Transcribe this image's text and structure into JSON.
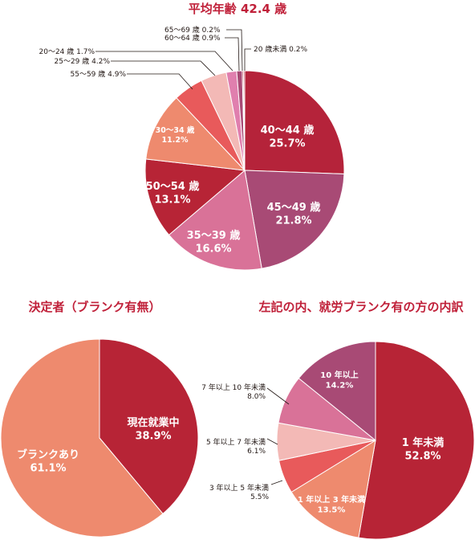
{
  "colors": {
    "title": "#c0213a",
    "crimson": "#b5233a",
    "wine": "#a84a75",
    "rose": "#d97298",
    "darkred": "#b72436",
    "salmon": "#ee8a6e",
    "red": "#e85a5b",
    "pale_pink": "#f3b9b6",
    "pink": "#e07fae",
    "dark": "#231815"
  },
  "chart_data": [
    {
      "type": "pie",
      "title": "平均年齢 42.4 歳",
      "slices": [
        {
          "label": "40～44 歳",
          "value": 25.7,
          "value_label": "25.7%",
          "color": "#b5233a"
        },
        {
          "label": "45～49 歳",
          "value": 21.8,
          "value_label": "21.8%",
          "color": "#a84a75"
        },
        {
          "label": "35～39 歳",
          "value": 16.6,
          "value_label": "16.6%",
          "color": "#d97298"
        },
        {
          "label": "50～54 歳",
          "value": 13.1,
          "value_label": "13.1%",
          "color": "#b72436"
        },
        {
          "label": "30～34 歳",
          "value": 11.2,
          "value_label": "11.2%",
          "color": "#ee8a6e"
        },
        {
          "label": "55～59 歳",
          "value": 4.9,
          "value_label": "4.9%",
          "color": "#e85a5b"
        },
        {
          "label": "25～29 歳",
          "value": 4.2,
          "value_label": "4.2%",
          "color": "#f3b9b6"
        },
        {
          "label": "20～24 歳",
          "value": 1.7,
          "value_label": "1.7%",
          "color": "#e07fae"
        },
        {
          "label": "60～64 歳",
          "value": 0.9,
          "value_label": "0.9%",
          "color": "#a84a75"
        },
        {
          "label": "65～69 歳",
          "value": 0.2,
          "value_label": "0.2%",
          "color": "#b5233a"
        },
        {
          "label": "20 歳未満",
          "value": 0.2,
          "value_label": "0.2%",
          "color": "#b72436"
        }
      ]
    },
    {
      "type": "pie",
      "title": "決定者（ブランク有無）",
      "slices": [
        {
          "label": "現在就業中",
          "value": 38.9,
          "value_label": "38.9%",
          "color": "#b72436"
        },
        {
          "label": "ブランクあり",
          "value": 61.1,
          "value_label": "61.1%",
          "color": "#ee8a6e"
        }
      ]
    },
    {
      "type": "pie",
      "title": "左記の内、就労ブランク有の方の内訳",
      "slices": [
        {
          "label": "1 年未満",
          "value": 52.8,
          "value_label": "52.8%",
          "color": "#b72436"
        },
        {
          "label": "1 年以上 3 年未満",
          "value": 13.5,
          "value_label": "13.5%",
          "color": "#ee8a6e"
        },
        {
          "label": "3 年以上 5 年未満",
          "value": 5.5,
          "value_label": "5.5%",
          "color": "#e85a5b"
        },
        {
          "label": "5 年以上 7 年未満",
          "value": 6.1,
          "value_label": "6.1%",
          "color": "#f3b9b6"
        },
        {
          "label": "7 年以上 10 年未満",
          "value": 8.0,
          "value_label": "8.0%",
          "color": "#d97298"
        },
        {
          "label": "10 年以上",
          "value": 14.2,
          "value_label": "14.2%",
          "color": "#a84a75"
        }
      ]
    }
  ]
}
